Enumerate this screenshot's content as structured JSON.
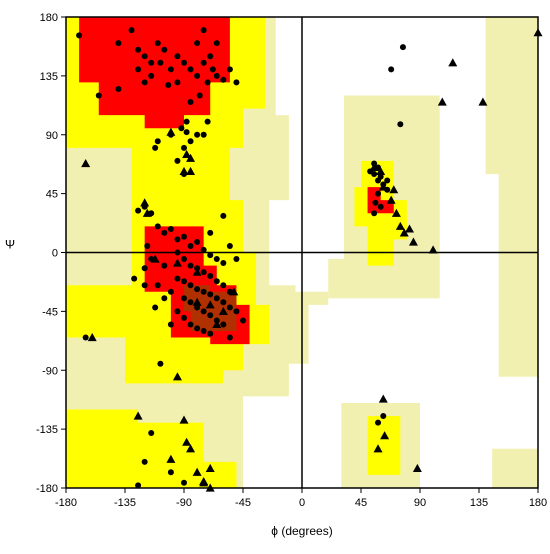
{
  "chart_data": {
    "type": "scatter",
    "title": "",
    "xlabel": "ϕ (degrees)",
    "ylabel": "Ψ",
    "xlim": [
      -180,
      180
    ],
    "ylim": [
      -180,
      180
    ],
    "xticks": [
      -180,
      -135,
      -90,
      -45,
      0,
      45,
      90,
      135,
      180
    ],
    "yticks": [
      -180,
      -135,
      -90,
      -45,
      0,
      45,
      90,
      135,
      180
    ],
    "xtick_labels": [
      "-180",
      "-135",
      "-90",
      "-45",
      "0",
      "45",
      "90",
      "135",
      "180"
    ],
    "ytick_labels": [
      "-180",
      "-135",
      "-90",
      "-45",
      "0",
      "45",
      "90",
      "135",
      "180"
    ],
    "grid": false,
    "legend": "none",
    "colors": {
      "background": "#ffffff",
      "generous": "#f2f0b0",
      "allowed": "#ffff00",
      "core": "#ff0000",
      "core_dense": "#b03000",
      "points": "#000000"
    },
    "regions": {
      "generous": [
        [
          [
            -180,
            180
          ],
          [
            -20,
            180
          ],
          [
            -20,
            105
          ],
          [
            -10,
            105
          ],
          [
            -10,
            40
          ],
          [
            -25,
            40
          ],
          [
            -25,
            -25
          ],
          [
            -5,
            -25
          ],
          [
            -5,
            -30
          ],
          [
            20,
            -30
          ],
          [
            20,
            -40
          ],
          [
            5,
            -40
          ],
          [
            5,
            -85
          ],
          [
            -10,
            -85
          ],
          [
            -10,
            -110
          ],
          [
            -45,
            -110
          ],
          [
            -45,
            -180
          ],
          [
            -180,
            -180
          ]
        ],
        [
          [
            32,
            120
          ],
          [
            105,
            120
          ],
          [
            105,
            -35
          ],
          [
            20,
            -35
          ],
          [
            20,
            -5
          ],
          [
            32,
            -5
          ]
        ],
        [
          [
            140,
            180
          ],
          [
            180,
            180
          ],
          [
            180,
            -95
          ],
          [
            150,
            -95
          ],
          [
            150,
            60
          ],
          [
            140,
            60
          ]
        ],
        [
          [
            30,
            -115
          ],
          [
            90,
            -115
          ],
          [
            90,
            -180
          ],
          [
            30,
            -180
          ]
        ],
        [
          [
            145,
            -150
          ],
          [
            180,
            -150
          ],
          [
            180,
            -180
          ],
          [
            145,
            -180
          ]
        ]
      ],
      "allowed": [
        [
          [
            -180,
            180
          ],
          [
            -28,
            180
          ],
          [
            -28,
            110
          ],
          [
            -45,
            110
          ],
          [
            -45,
            80
          ],
          [
            -55,
            80
          ],
          [
            -55,
            40
          ],
          [
            -45,
            40
          ],
          [
            -45,
            0
          ],
          [
            -35,
            0
          ],
          [
            -35,
            -40
          ],
          [
            -25,
            -40
          ],
          [
            -25,
            -70
          ],
          [
            -45,
            -70
          ],
          [
            -45,
            -90
          ],
          [
            -60,
            -90
          ],
          [
            -60,
            -100
          ],
          [
            -135,
            -100
          ],
          [
            -135,
            -65
          ],
          [
            -180,
            -65
          ],
          [
            -180,
            -25
          ],
          [
            -130,
            -25
          ],
          [
            -130,
            80
          ],
          [
            -180,
            80
          ]
        ],
        [
          [
            -180,
            -120
          ],
          [
            -125,
            -120
          ],
          [
            -125,
            -130
          ],
          [
            -75,
            -130
          ],
          [
            -75,
            -160
          ],
          [
            -50,
            -160
          ],
          [
            -50,
            -180
          ],
          [
            -180,
            -180
          ]
        ],
        [
          [
            45,
            70
          ],
          [
            70,
            70
          ],
          [
            70,
            40
          ],
          [
            80,
            40
          ],
          [
            80,
            10
          ],
          [
            70,
            10
          ],
          [
            70,
            -10
          ],
          [
            50,
            -10
          ],
          [
            50,
            20
          ],
          [
            40,
            20
          ],
          [
            40,
            50
          ],
          [
            45,
            50
          ]
        ],
        [
          [
            50,
            -125
          ],
          [
            75,
            -125
          ],
          [
            75,
            -170
          ],
          [
            50,
            -170
          ]
        ]
      ],
      "core": [
        [
          [
            -170,
            180
          ],
          [
            -55,
            180
          ],
          [
            -55,
            130
          ],
          [
            -70,
            130
          ],
          [
            -70,
            105
          ],
          [
            -90,
            105
          ],
          [
            -90,
            95
          ],
          [
            -120,
            95
          ],
          [
            -120,
            105
          ],
          [
            -155,
            105
          ],
          [
            -155,
            130
          ],
          [
            -170,
            130
          ]
        ],
        [
          [
            -120,
            20
          ],
          [
            -75,
            20
          ],
          [
            -75,
            -10
          ],
          [
            -65,
            -10
          ],
          [
            -65,
            -25
          ],
          [
            -50,
            -25
          ],
          [
            -50,
            -40
          ],
          [
            -40,
            -40
          ],
          [
            -40,
            -70
          ],
          [
            -70,
            -70
          ],
          [
            -70,
            -65
          ],
          [
            -100,
            -65
          ],
          [
            -100,
            -30
          ],
          [
            -120,
            -30
          ]
        ],
        [
          [
            50,
            50
          ],
          [
            60,
            50
          ],
          [
            60,
            40
          ],
          [
            70,
            40
          ],
          [
            70,
            30
          ],
          [
            50,
            30
          ]
        ]
      ],
      "core_dense": [
        [
          [
            -90,
            -25
          ],
          [
            -70,
            -25
          ],
          [
            -70,
            -30
          ],
          [
            -50,
            -30
          ],
          [
            -50,
            -60
          ],
          [
            -85,
            -60
          ],
          [
            -85,
            -45
          ],
          [
            -90,
            -45
          ]
        ]
      ]
    },
    "circles": [
      [
        -170,
        166
      ],
      [
        -140,
        160
      ],
      [
        -130,
        170
      ],
      [
        -125,
        155
      ],
      [
        -120,
        150
      ],
      [
        -115,
        145
      ],
      [
        -110,
        160
      ],
      [
        -105,
        155
      ],
      [
        -125,
        140
      ],
      [
        -115,
        135
      ],
      [
        -108,
        145
      ],
      [
        -100,
        140
      ],
      [
        -95,
        150
      ],
      [
        -90,
        145
      ],
      [
        -85,
        140
      ],
      [
        -80,
        135
      ],
      [
        -75,
        145
      ],
      [
        -70,
        150
      ],
      [
        -68,
        140
      ],
      [
        -65,
        135
      ],
      [
        -72,
        130
      ],
      [
        -60,
        132
      ],
      [
        -55,
        140
      ],
      [
        -50,
        130
      ],
      [
        -78,
        120
      ],
      [
        -85,
        115
      ],
      [
        -95,
        130
      ],
      [
        -102,
        128
      ],
      [
        -120,
        130
      ],
      [
        -140,
        125
      ],
      [
        -155,
        120
      ],
      [
        -80,
        160
      ],
      [
        -65,
        160
      ],
      [
        -75,
        170
      ],
      [
        -92,
        95
      ],
      [
        -88,
        92
      ],
      [
        -80,
        90
      ],
      [
        -75,
        90
      ],
      [
        -85,
        85
      ],
      [
        -90,
        80
      ],
      [
        -100,
        90
      ],
      [
        -110,
        85
      ],
      [
        -112,
        80
      ],
      [
        -95,
        70
      ],
      [
        -90,
        60
      ],
      [
        -88,
        100
      ],
      [
        -72,
        100
      ],
      [
        -120,
        35
      ],
      [
        -115,
        30
      ],
      [
        -125,
        32
      ],
      [
        -110,
        20
      ],
      [
        -105,
        15
      ],
      [
        -100,
        18
      ],
      [
        -95,
        10
      ],
      [
        -90,
        12
      ],
      [
        -85,
        5
      ],
      [
        -80,
        8
      ],
      [
        -75,
        2
      ],
      [
        -70,
        -2
      ],
      [
        -65,
        -5
      ],
      [
        -60,
        -8
      ],
      [
        -95,
        0
      ],
      [
        -90,
        -5
      ],
      [
        -85,
        -10
      ],
      [
        -80,
        -12
      ],
      [
        -75,
        -15
      ],
      [
        -70,
        -18
      ],
      [
        -65,
        -22
      ],
      [
        -60,
        -25
      ],
      [
        -55,
        -30
      ],
      [
        -85,
        -25
      ],
      [
        -80,
        -28
      ],
      [
        -75,
        -30
      ],
      [
        -70,
        -32
      ],
      [
        -65,
        -35
      ],
      [
        -60,
        -38
      ],
      [
        -55,
        -42
      ],
      [
        -50,
        -45
      ],
      [
        -90,
        -35
      ],
      [
        -85,
        -38
      ],
      [
        -80,
        -42
      ],
      [
        -75,
        -45
      ],
      [
        -70,
        -48
      ],
      [
        -65,
        -52
      ],
      [
        -60,
        -55
      ],
      [
        -95,
        -45
      ],
      [
        -90,
        -50
      ],
      [
        -85,
        -55
      ],
      [
        -80,
        -58
      ],
      [
        -75,
        -60
      ],
      [
        -70,
        -62
      ],
      [
        -110,
        -25
      ],
      [
        -100,
        -30
      ],
      [
        -95,
        -20
      ],
      [
        -105,
        -10
      ],
      [
        -115,
        -5
      ],
      [
        -120,
        -12
      ],
      [
        -118,
        5
      ],
      [
        -128,
        -20
      ],
      [
        -112,
        -42
      ],
      [
        -100,
        -55
      ],
      [
        -45,
        -52
      ],
      [
        -55,
        -65
      ],
      [
        -90,
        -22
      ],
      [
        -105,
        -35
      ],
      [
        -120,
        -25
      ],
      [
        55,
        68
      ],
      [
        52,
        62
      ],
      [
        58,
        65
      ],
      [
        55,
        60
      ],
      [
        60,
        58
      ],
      [
        62,
        52
      ],
      [
        65,
        48
      ],
      [
        58,
        45
      ],
      [
        56,
        38
      ],
      [
        60,
        35
      ],
      [
        55,
        30
      ],
      [
        65,
        55
      ],
      [
        58,
        55
      ],
      [
        -60,
        28
      ],
      [
        -70,
        15
      ],
      [
        -55,
        5
      ],
      [
        -50,
        -5
      ],
      [
        75,
        98
      ],
      [
        68,
        140
      ],
      [
        77,
        157
      ],
      [
        -115,
        -138
      ],
      [
        -120,
        -160
      ],
      [
        -100,
        -168
      ],
      [
        -90,
        -176
      ],
      [
        -125,
        -178
      ],
      [
        58,
        -130
      ],
      [
        62,
        -125
      ],
      [
        -165,
        -65
      ],
      [
        -108,
        -85
      ]
    ],
    "triangles": [
      [
        -165,
        68
      ],
      [
        -100,
        92
      ],
      [
        -88,
        75
      ],
      [
        -85,
        72
      ],
      [
        -85,
        62
      ],
      [
        -90,
        62
      ],
      [
        -120,
        38
      ],
      [
        -118,
        30
      ],
      [
        -112,
        -5
      ],
      [
        -95,
        -8
      ],
      [
        -80,
        -15
      ],
      [
        -125,
        -125
      ],
      [
        -95,
        -95
      ],
      [
        -90,
        -128
      ],
      [
        -80,
        -168
      ],
      [
        -75,
        -175
      ],
      [
        -70,
        -180
      ],
      [
        -75,
        -176
      ],
      [
        -100,
        -158
      ],
      [
        -88,
        -145
      ],
      [
        -85,
        -150
      ],
      [
        -70,
        -165
      ],
      [
        -160,
        -65
      ],
      [
        55,
        65
      ],
      [
        60,
        62
      ],
      [
        62,
        50
      ],
      [
        70,
        48
      ],
      [
        68,
        40
      ],
      [
        72,
        30
      ],
      [
        75,
        20
      ],
      [
        78,
        15
      ],
      [
        82,
        18
      ],
      [
        85,
        8
      ],
      [
        100,
        2
      ],
      [
        107,
        115
      ],
      [
        115,
        145
      ],
      [
        138,
        115
      ],
      [
        180,
        168
      ],
      [
        88,
        -165
      ],
      [
        62,
        -112
      ],
      [
        63,
        -140
      ],
      [
        58,
        -150
      ],
      [
        -52,
        -30
      ],
      [
        -60,
        -45
      ],
      [
        -70,
        -40
      ],
      [
        -80,
        -38
      ],
      [
        -65,
        -55
      ]
    ]
  }
}
